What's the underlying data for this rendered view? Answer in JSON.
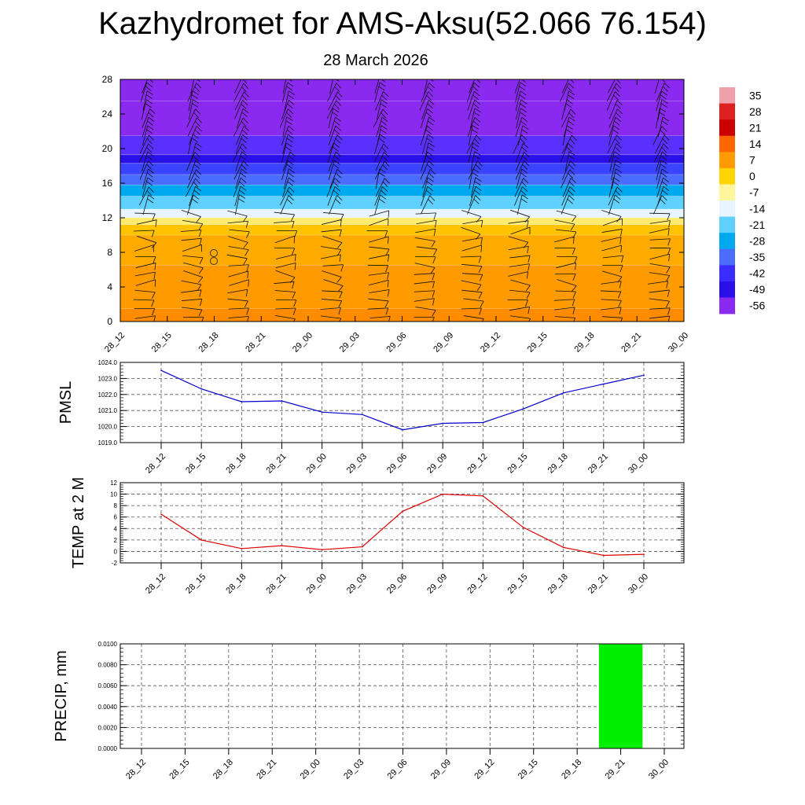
{
  "page": {
    "title": "Kazhydromet for AMS-Aksu(52.066 76.154)",
    "subtitle": "28 March 2026"
  },
  "colors": {
    "pmsl_line": "#0000cc",
    "temp_line": "#dd0000",
    "precip_bar": "#00ee00",
    "grid": "#555555",
    "barb": "#111111"
  },
  "chart_data": [
    {
      "type": "heatmap",
      "name": "cross-section",
      "title": "",
      "xlabel": "",
      "ylabel": "",
      "categories": [
        "28_12",
        "28_15",
        "28_18",
        "28_21",
        "29_00",
        "29_03",
        "29_06",
        "29_09",
        "29_12",
        "29_15",
        "29_18",
        "29_21",
        "30_00"
      ],
      "ylim": [
        0,
        28
      ],
      "yticks": [
        0,
        4,
        8,
        12,
        16,
        20,
        24,
        28
      ],
      "note": "Vertical profile of temperature with wind barbs; warm layer (about 5 to 7) below level 12, sharp transition near 12-18, cold layer (about -49 to -56) above 18.",
      "colorbar": {
        "labels": [
          "35",
          "28",
          "21",
          "14",
          "7",
          "0",
          "-7",
          "-14",
          "-21",
          "-28",
          "-35",
          "-42",
          "-49",
          "-56"
        ],
        "colors": [
          "#f0a0a8",
          "#dd2020",
          "#cc0000",
          "#ff6600",
          "#ff9a00",
          "#ffd400",
          "#fff59a",
          "#e8f4ff",
          "#60d0ff",
          "#00a8f0",
          "#4a6cff",
          "#3a2cff",
          "#2a10e8",
          "#8a2af0"
        ]
      },
      "bands": [
        {
          "from": 0,
          "to": 1.5,
          "value": 9
        },
        {
          "from": 1.5,
          "to": 6.5,
          "value": 7
        },
        {
          "from": 6.5,
          "to": 10,
          "value": 5
        },
        {
          "from": 10,
          "to": 11.2,
          "value": 2
        },
        {
          "from": 11.2,
          "to": 12,
          "value": -5
        },
        {
          "from": 12,
          "to": 13,
          "value": -14
        },
        {
          "from": 13,
          "to": 14.5,
          "value": -21
        },
        {
          "from": 14.5,
          "to": 15.8,
          "value": -28
        },
        {
          "from": 15.8,
          "to": 17,
          "value": -35
        },
        {
          "from": 17,
          "to": 18.3,
          "value": -42
        },
        {
          "from": 18.3,
          "to": 19.3,
          "value": -49
        },
        {
          "from": 19.3,
          "to": 21.5,
          "value": -52
        },
        {
          "from": 21.5,
          "to": 25.5,
          "value": -56
        },
        {
          "from": 25.5,
          "to": 28,
          "value": -58
        }
      ]
    },
    {
      "type": "line",
      "name": "PMSL",
      "ylabel": "PMSL",
      "categories": [
        "28_12",
        "28_15",
        "28_18",
        "28_21",
        "29_00",
        "29_03",
        "29_06",
        "29_09",
        "29_12",
        "29_15",
        "29_18",
        "29_21",
        "30_00"
      ],
      "values": [
        1023.5,
        1022.35,
        1021.55,
        1021.6,
        1020.9,
        1020.75,
        1019.8,
        1020.2,
        1020.25,
        1021.1,
        1022.1,
        1022.65,
        1023.2
      ],
      "ylim": [
        1019.0,
        1024.0
      ],
      "ytick_labels": [
        "1024.0",
        "1023.0",
        "1022.0",
        "1021.0",
        "1020.0",
        "1019.0"
      ]
    },
    {
      "type": "line",
      "name": "TEMP at 2 M",
      "ylabel": "TEMP at 2 M",
      "categories": [
        "28_12",
        "28_15",
        "28_18",
        "28_21",
        "29_00",
        "29_03",
        "29_06",
        "29_09",
        "29_12",
        "29_15",
        "29_18",
        "29_21",
        "30_00"
      ],
      "values": [
        6.5,
        2.0,
        0.5,
        1.0,
        0.3,
        0.8,
        7.0,
        10.0,
        9.7,
        4.2,
        0.7,
        -0.7,
        -0.5
      ],
      "ylim": [
        -2,
        12
      ],
      "ytick_labels": [
        "12",
        "10",
        "8",
        "6",
        "4",
        "2",
        "0",
        "-2"
      ]
    },
    {
      "type": "bar",
      "name": "PRECIP",
      "ylabel": "PRECIP, mm",
      "categories": [
        "28_12",
        "28_15",
        "28_18",
        "28_21",
        "29_00",
        "29_03",
        "29_06",
        "29_09",
        "29_12",
        "29_15",
        "29_18",
        "29_21",
        "30_00"
      ],
      "values": [
        0,
        0,
        0,
        0,
        0,
        0,
        0,
        0,
        0,
        0,
        0,
        0.01,
        0
      ],
      "ylim": [
        0,
        0.01
      ],
      "ytick_labels": [
        "0.0100",
        "0.0080",
        "0.0060",
        "0.0040",
        "0.0020",
        "0.0000"
      ]
    }
  ]
}
